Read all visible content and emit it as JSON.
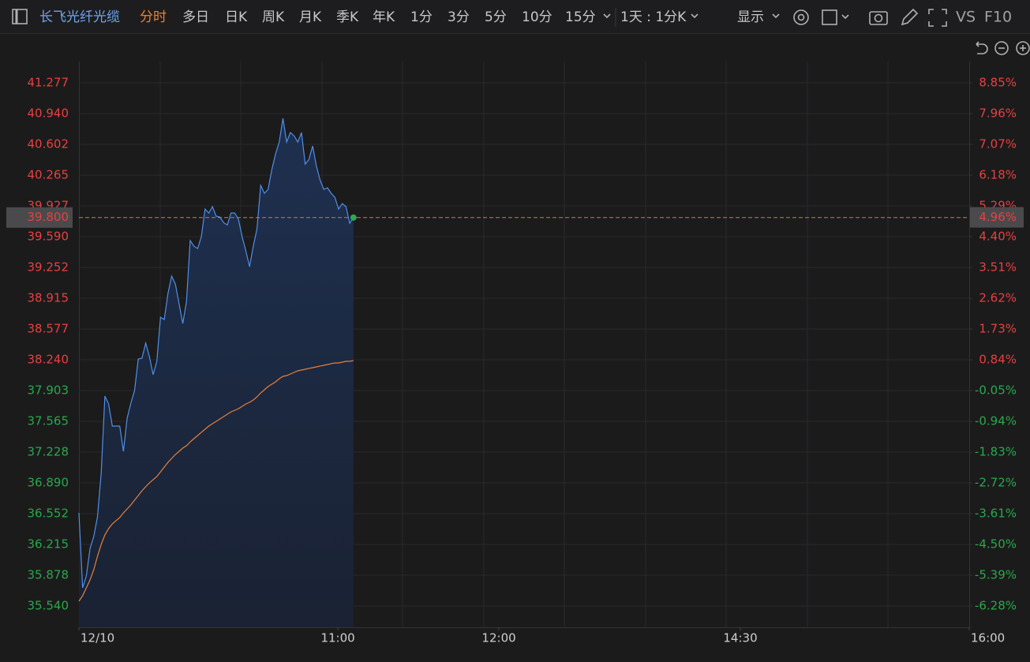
{
  "toolbar": {
    "stock_name": "长飞光纤光缆",
    "tabs": [
      "分时",
      "多日",
      "日K",
      "周K",
      "月K",
      "季K",
      "年K",
      "1分",
      "3分",
      "5分",
      "10分",
      "15分"
    ],
    "active_tab": 0,
    "period": "1天 : 1分K",
    "display": "显示",
    "vs": "VS",
    "f10": "F10"
  },
  "chart_data": {
    "type": "line",
    "x": [
      0,
      1,
      2,
      3,
      4,
      5,
      6,
      7,
      8,
      9,
      10,
      11,
      12,
      13,
      14,
      15,
      16,
      17,
      18,
      19,
      20,
      21,
      22,
      23,
      24,
      25,
      26,
      27,
      28,
      29,
      30,
      31,
      32,
      33,
      34,
      35,
      36,
      37,
      38,
      39,
      40,
      41,
      42,
      43,
      44,
      45,
      46,
      47,
      48,
      49,
      50,
      51,
      52,
      53,
      54,
      55,
      56,
      57,
      58,
      59,
      60,
      61,
      62,
      63,
      64,
      65,
      66,
      67,
      68,
      69,
      70,
      71,
      72,
      73,
      74
    ],
    "series": [
      {
        "color": "#4f8fe8",
        "area": true,
        "values": [
          36.561,
          35.739,
          35.869,
          36.172,
          36.302,
          36.518,
          36.994,
          37.842,
          37.755,
          37.513,
          37.513,
          37.513,
          37.236,
          37.6,
          37.764,
          37.902,
          38.248,
          38.257,
          38.422,
          38.275,
          38.076,
          38.223,
          38.707,
          38.681,
          38.967,
          39.157,
          39.071,
          38.854,
          38.638,
          38.88,
          39.547,
          39.486,
          39.46,
          39.59,
          39.893,
          39.849,
          39.919,
          39.815,
          39.806,
          39.745,
          39.719,
          39.849,
          39.849,
          39.78,
          39.59,
          39.434,
          39.261,
          39.486,
          39.676,
          40.152,
          40.066,
          40.109,
          40.325,
          40.498,
          40.628,
          40.888,
          40.628,
          40.732,
          40.697,
          40.628,
          40.732,
          40.386,
          40.438,
          40.585,
          40.369,
          40.213,
          40.109,
          40.126,
          40.066,
          40.022,
          39.893,
          39.953,
          39.919,
          39.737,
          39.8
        ]
      },
      {
        "color": "#e8803a",
        "area": false,
        "values": [
          35.592,
          35.653,
          35.739,
          35.826,
          35.938,
          36.085,
          36.215,
          36.319,
          36.388,
          36.44,
          36.475,
          36.509,
          36.561,
          36.604,
          36.648,
          36.7,
          36.751,
          36.803,
          36.847,
          36.89,
          36.925,
          36.959,
          37.011,
          37.063,
          37.115,
          37.158,
          37.201,
          37.236,
          37.271,
          37.297,
          37.34,
          37.374,
          37.409,
          37.444,
          37.478,
          37.513,
          37.539,
          37.565,
          37.591,
          37.617,
          37.643,
          37.669,
          37.686,
          37.703,
          37.729,
          37.755,
          37.773,
          37.798,
          37.833,
          37.876,
          37.911,
          37.946,
          37.972,
          37.997,
          38.032,
          38.058,
          38.067,
          38.084,
          38.101,
          38.119,
          38.127,
          38.136,
          38.145,
          38.153,
          38.162,
          38.171,
          38.179,
          38.188,
          38.197,
          38.205,
          38.205,
          38.214,
          38.223,
          38.223,
          38.231
        ]
      }
    ],
    "xlim": [
      0,
      240
    ],
    "xticks": [
      {
        "value": 0,
        "label": "12/10"
      },
      {
        "value": 69.8,
        "label": "11:00"
      },
      {
        "value": 113.2,
        "label": "12:00"
      },
      {
        "value": 178.3,
        "label": "14:30"
      },
      {
        "value": 240,
        "label": "16:00"
      }
    ],
    "ylim": [
      35.306,
      41.511
    ],
    "yticks": [
      41.277,
      {
        "value": 40.94,
        "label": "40.940"
      },
      40.602,
      40.265,
      39.927,
      {
        "value": 39.59,
        "label": "39.590"
      },
      39.252,
      38.915,
      38.577,
      {
        "value": 38.24,
        "label": "38.240"
      },
      37.903,
      37.565,
      37.228,
      {
        "value": 36.89,
        "label": "36.890"
      },
      36.552,
      36.215,
      35.878,
      {
        "value": 35.54,
        "label": "35.540"
      }
    ],
    "y2lim": [
      -6.897,
      9.467
    ],
    "y2ticks": [
      {
        "value": 8.85,
        "label": "8.85%"
      },
      {
        "value": 7.96,
        "label": "7.96%"
      },
      {
        "value": 7.07,
        "label": "7.07%"
      },
      {
        "value": 6.18,
        "label": "6.18%"
      },
      {
        "value": 5.29,
        "label": "5.29%"
      },
      {
        "value": 4.4,
        "label": "4.40%"
      },
      {
        "value": 3.51,
        "label": "3.51%"
      },
      {
        "value": 2.62,
        "label": "2.62%"
      },
      {
        "value": 1.73,
        "label": "1.73%"
      },
      {
        "value": 0.84,
        "label": "0.84%"
      },
      {
        "value": -0.05,
        "label": "-0.05%"
      },
      {
        "value": -0.94,
        "label": "-0.94%"
      },
      {
        "value": -1.83,
        "label": "-1.83%"
      },
      {
        "value": -2.72,
        "label": "-2.72%"
      },
      {
        "value": -3.61,
        "label": "-3.61%"
      },
      {
        "value": -4.5,
        "label": "-4.50%"
      },
      {
        "value": -5.39,
        "label": "-5.39%"
      },
      {
        "value": -6.28,
        "label": "-6.28%"
      }
    ],
    "last_price": {
      "value": 39.8,
      "label": "39.800"
    },
    "last_change": {
      "value": 4.96,
      "label": "4.96%"
    },
    "grid": true,
    "up_color": "#e8403f",
    "down_color": "#2aa84a"
  }
}
